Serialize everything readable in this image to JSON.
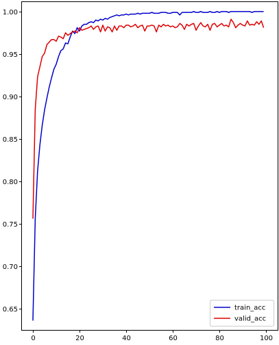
{
  "chart_data": {
    "type": "line",
    "title": "",
    "xlabel": "",
    "ylabel": "",
    "xlim": [
      -5,
      105
    ],
    "ylim": [
      0.625,
      1.012
    ],
    "x_ticks": [
      0,
      20,
      40,
      60,
      80,
      100
    ],
    "x_tick_labels": [
      "0",
      "20",
      "40",
      "60",
      "80",
      "100"
    ],
    "y_ticks": [
      0.65,
      0.7,
      0.75,
      0.8,
      0.85,
      0.9,
      0.95,
      1.0
    ],
    "y_tick_labels": [
      "0.65",
      "0.70",
      "0.75",
      "0.80",
      "0.85",
      "0.90",
      "0.95",
      "1.00"
    ],
    "grid": false,
    "legend_position": "lower-right",
    "x": [
      0,
      1,
      2,
      3,
      4,
      5,
      6,
      7,
      8,
      9,
      10,
      11,
      12,
      13,
      14,
      15,
      16,
      17,
      18,
      19,
      20,
      21,
      22,
      23,
      24,
      25,
      26,
      27,
      28,
      29,
      30,
      31,
      32,
      33,
      34,
      35,
      36,
      37,
      38,
      39,
      40,
      41,
      42,
      43,
      44,
      45,
      46,
      47,
      48,
      49,
      50,
      51,
      52,
      53,
      54,
      55,
      56,
      57,
      58,
      59,
      60,
      61,
      62,
      63,
      64,
      65,
      66,
      67,
      68,
      69,
      70,
      71,
      72,
      73,
      74,
      75,
      76,
      77,
      78,
      79,
      80,
      81,
      82,
      83,
      84,
      85,
      86,
      87,
      88,
      89,
      90,
      91,
      92,
      93,
      94,
      95,
      96,
      97,
      98,
      99
    ],
    "series": [
      {
        "name": "train_acc",
        "color": "#0000cc",
        "values": [
          0.636,
          0.756,
          0.812,
          0.843,
          0.866,
          0.884,
          0.898,
          0.911,
          0.922,
          0.932,
          0.938,
          0.947,
          0.954,
          0.956,
          0.963,
          0.962,
          0.97,
          0.977,
          0.974,
          0.981,
          0.977,
          0.983,
          0.985,
          0.985,
          0.987,
          0.988,
          0.987,
          0.99,
          0.989,
          0.991,
          0.99,
          0.992,
          0.991,
          0.993,
          0.994,
          0.995,
          0.996,
          0.995,
          0.996,
          0.996,
          0.997,
          0.996,
          0.997,
          0.997,
          0.997,
          0.998,
          0.997,
          0.998,
          0.998,
          0.998,
          0.998,
          0.999,
          0.998,
          0.998,
          0.998,
          0.999,
          0.999,
          0.999,
          0.998,
          0.998,
          0.999,
          0.999,
          0.999,
          0.996,
          0.999,
          0.999,
          0.999,
          0.999,
          0.999,
          1.0,
          0.999,
          0.999,
          1.0,
          0.999,
          0.999,
          0.999,
          1.0,
          0.999,
          0.999,
          1.0,
          0.999,
          1.0,
          1.0,
          1.0,
          0.999,
          1.0,
          1.0,
          1.0,
          1.0,
          1.0,
          1.0,
          1.0,
          1.0,
          1.0,
          0.999,
          1.0,
          1.0,
          1.0,
          1.0,
          1.0
        ]
      },
      {
        "name": "valid_acc",
        "color": "#dd0000",
        "values": [
          0.756,
          0.885,
          0.923,
          0.935,
          0.947,
          0.951,
          0.961,
          0.964,
          0.967,
          0.967,
          0.965,
          0.971,
          0.97,
          0.968,
          0.975,
          0.972,
          0.974,
          0.976,
          0.977,
          0.975,
          0.981,
          0.978,
          0.979,
          0.98,
          0.981,
          0.983,
          0.979,
          0.982,
          0.983,
          0.976,
          0.984,
          0.977,
          0.982,
          0.981,
          0.976,
          0.983,
          0.978,
          0.983,
          0.983,
          0.981,
          0.984,
          0.984,
          0.982,
          0.983,
          0.985,
          0.981,
          0.983,
          0.984,
          0.977,
          0.983,
          0.983,
          0.984,
          0.983,
          0.976,
          0.984,
          0.982,
          0.985,
          0.983,
          0.984,
          0.982,
          0.983,
          0.981,
          0.982,
          0.986,
          0.984,
          0.979,
          0.985,
          0.983,
          0.985,
          0.986,
          0.978,
          0.983,
          0.987,
          0.983,
          0.982,
          0.985,
          0.978,
          0.985,
          0.986,
          0.982,
          0.984,
          0.986,
          0.983,
          0.984,
          0.982,
          0.991,
          0.987,
          0.981,
          0.984,
          0.986,
          0.984,
          0.983,
          0.989,
          0.984,
          0.985,
          0.984,
          0.988,
          0.985,
          0.989,
          0.981
        ]
      }
    ]
  }
}
